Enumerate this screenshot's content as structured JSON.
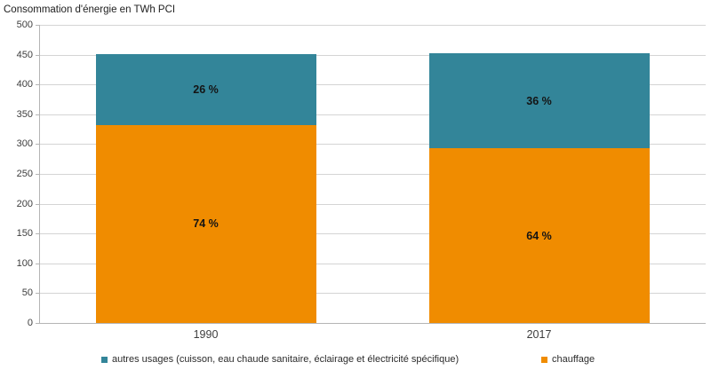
{
  "title": "Consommation d'énergie en TWh PCI",
  "colors": {
    "autres_usages": "#338599",
    "chauffage": "#F08C00",
    "gridline": "#D4D4D4",
    "axis": "#B5B5B5"
  },
  "chart_data": {
    "type": "bar",
    "stacked": true,
    "title": "Consommation d'énergie en TWh PCI",
    "categories": [
      "1990",
      "2017"
    ],
    "series": [
      {
        "name": "chauffage",
        "color": "#F08C00",
        "values": [
          332,
          293
        ],
        "percent_labels": [
          "74 %",
          "64 %"
        ]
      },
      {
        "name": "autres usages (cuisson, eau chaude sanitaire, éclairage et électricité spécifique)",
        "color": "#338599",
        "values": [
          119,
          159
        ],
        "percent_labels": [
          "26 %",
          "36 %"
        ]
      }
    ],
    "totals": [
      451,
      452
    ],
    "xlabel": "",
    "ylabel": "TWh PCI",
    "ylim": [
      0,
      500
    ],
    "ytick_step": 50,
    "grid": true,
    "legend_position": "bottom"
  },
  "legend": {
    "items": [
      {
        "label": "autres usages (cuisson, eau chaude sanitaire, éclairage et électricité spécifique)",
        "color": "#338599"
      },
      {
        "label": "chauffage",
        "color": "#F08C00"
      }
    ]
  }
}
